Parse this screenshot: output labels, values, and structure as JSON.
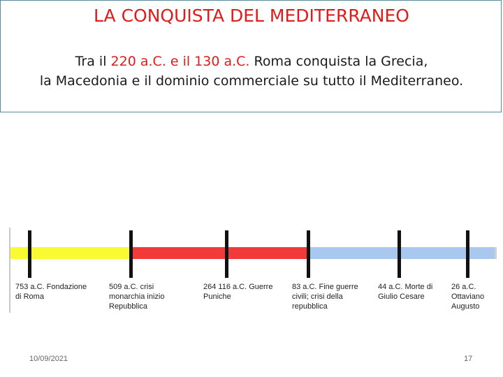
{
  "slide": {
    "title": "LA CONQUISTA DEL MEDITERRANEO",
    "subtitle": {
      "part1": "Tra il ",
      "highlight1": "220 a.C. e il 130 a.C.",
      "part2": " Roma conquista la Grecia,",
      "line2": "la Macedonia e il dominio commerciale su tutto il Mediterraneo."
    },
    "colors": {
      "title": "#e01b1b",
      "segment_yellow": "#fafa33",
      "segment_red": "#f23a3a",
      "segment_blue": "#a8c8f0"
    }
  },
  "timeline": {
    "events": [
      {
        "label": "753 a.C. Fondazione\ndi Roma"
      },
      {
        "label": "509 a.C. crisi\nmonarchia inizio\nRepubblica"
      },
      {
        "label": "264 116 a.C. Guerre\nPuniche"
      },
      {
        "label": "83 a.C. Fine guerre\ncivili; crisi della\nrepubblica"
      },
      {
        "label": "44 a.C. Morte di\nGiulio Cesare"
      },
      {
        "label": "26 a.C.\nOttaviano\nAugusto"
      }
    ]
  },
  "footer": {
    "date": "10/09/2021",
    "page": "17"
  }
}
